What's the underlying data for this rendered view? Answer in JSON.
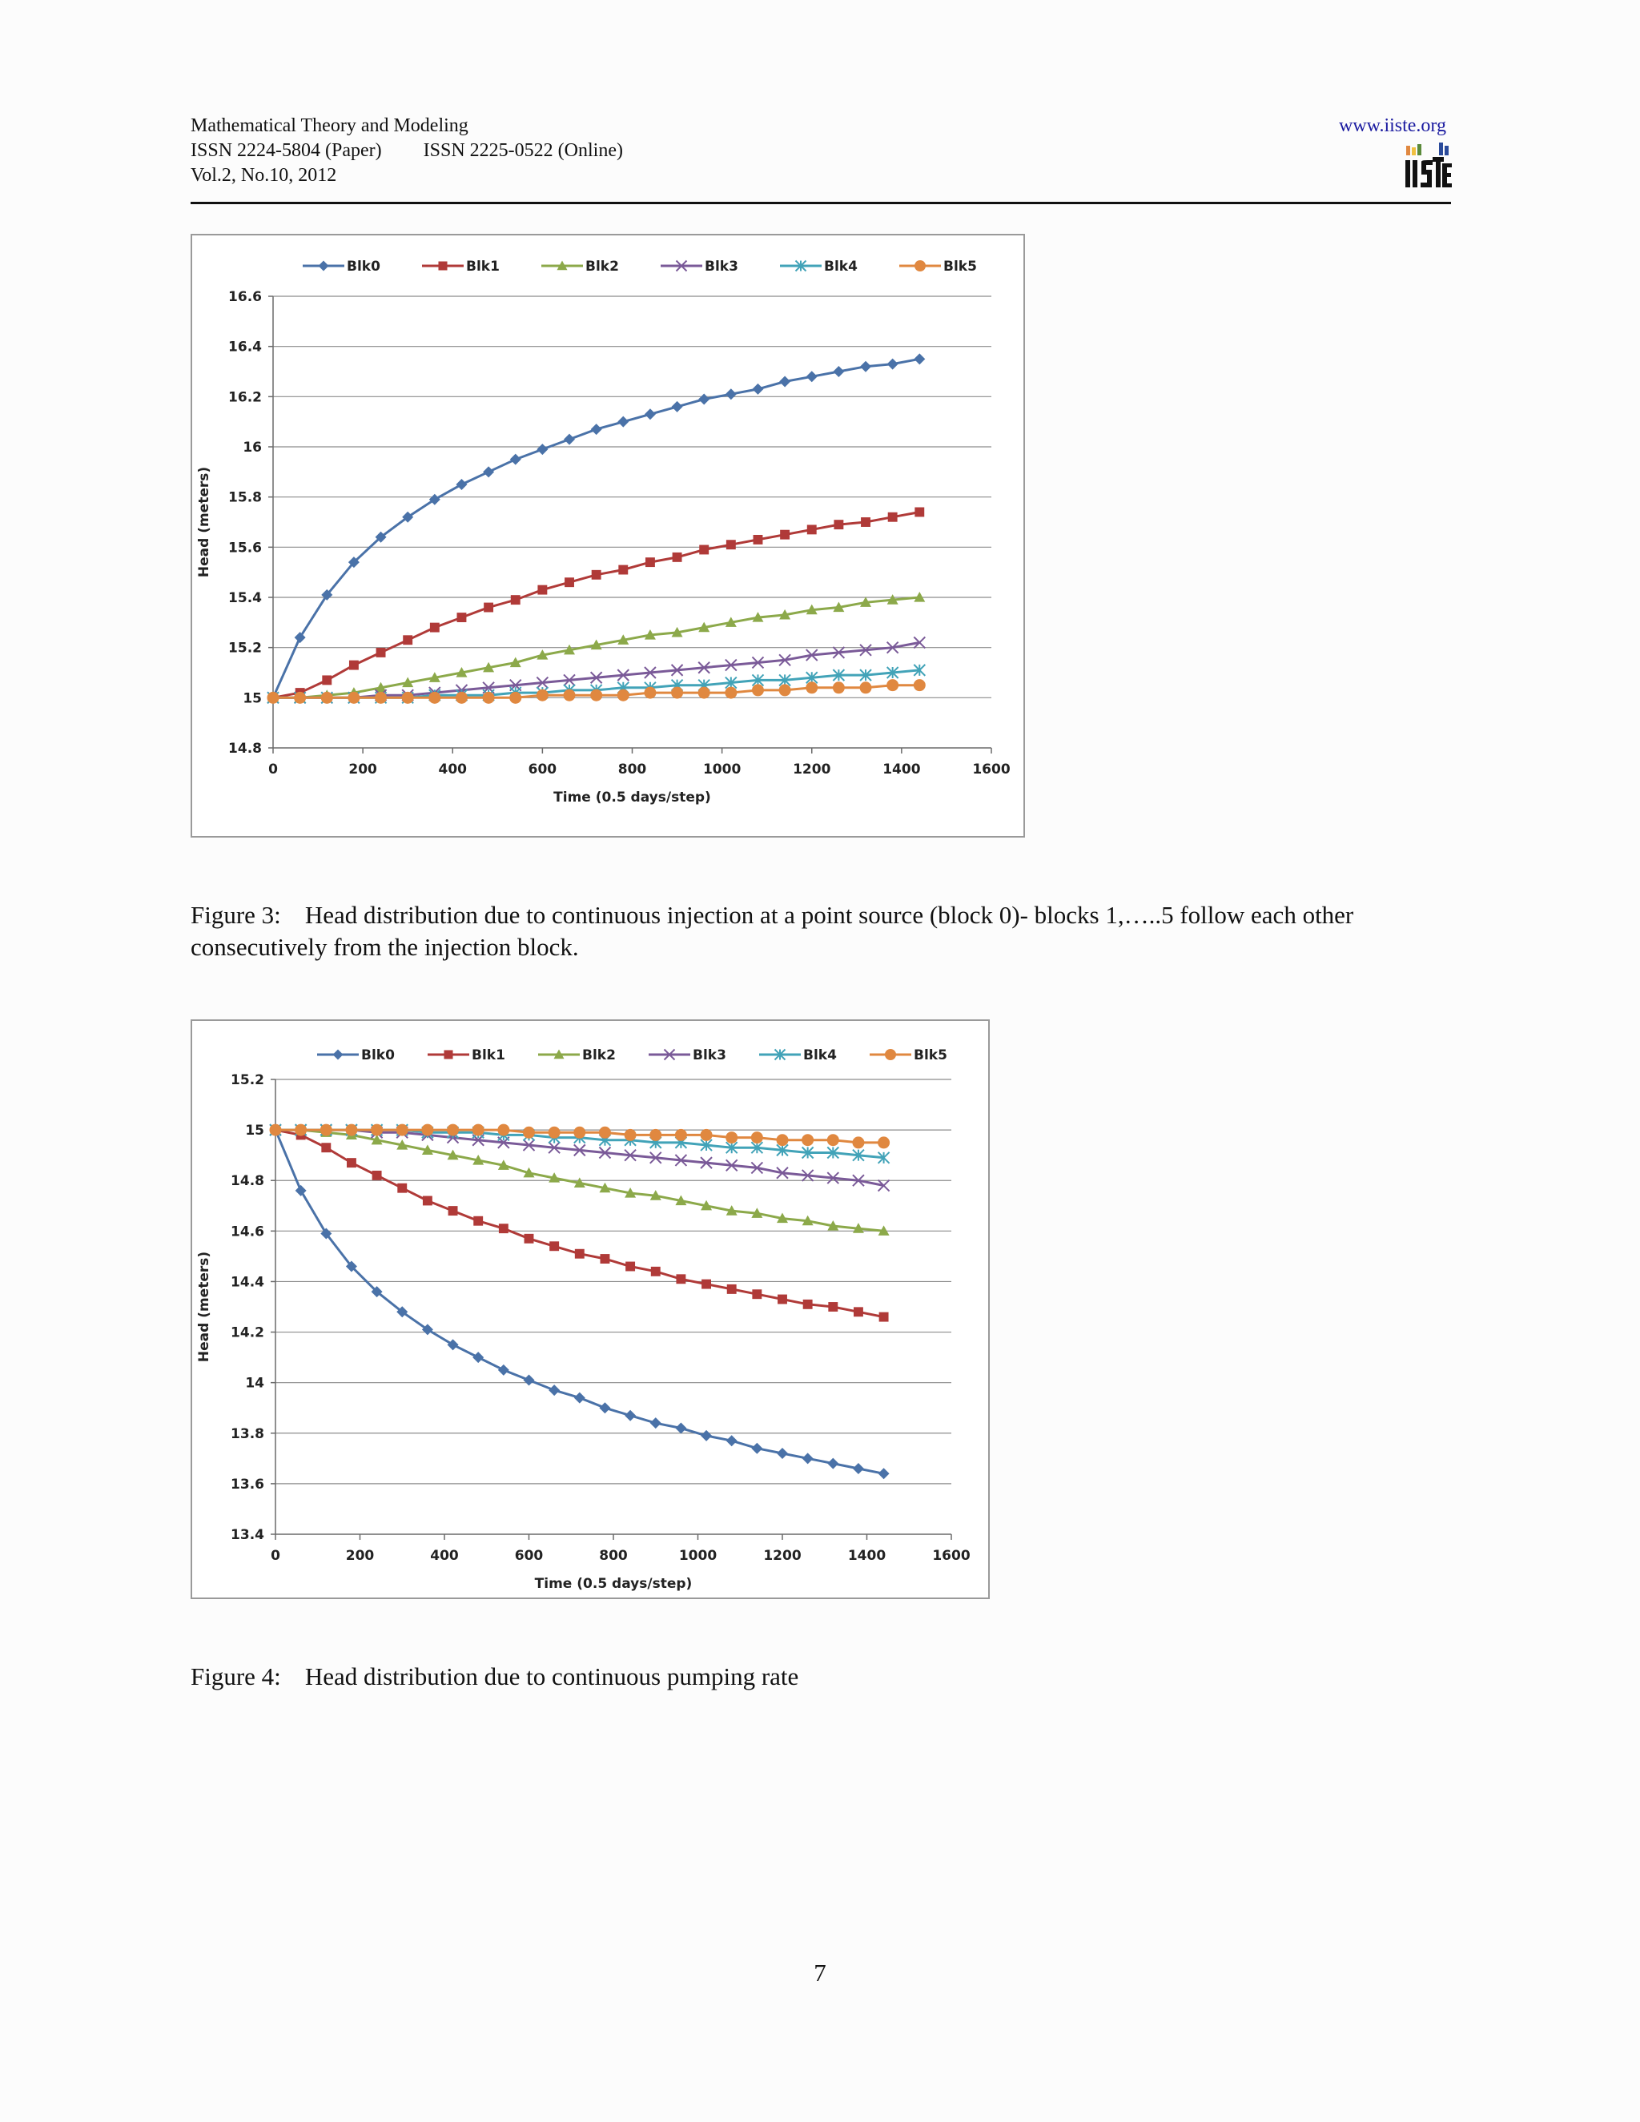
{
  "header": {
    "journal": "Mathematical Theory and Modeling",
    "issn_paper": "ISSN 2224-5804 (Paper)",
    "issn_online": "ISSN 2225-0522 (Online)",
    "volume": "Vol.2, No.10, 2012",
    "url": "www.iiste.org",
    "logo_text": "IISTE"
  },
  "colors": {
    "Blk0": "#4a72a8",
    "Blk1": "#b03a38",
    "Blk2": "#8ca94a",
    "Blk3": "#7a5a98",
    "Blk4": "#42a3b8",
    "Blk5": "#e08840",
    "grid": "#8c8c8c",
    "axis": "#6a6a6a"
  },
  "figures": [
    {
      "label": "Figure 3:",
      "caption": "Head distribution due to continuous injection at a point source (block 0)- blocks 1,…..5 follow each other consecutively from the injection block."
    },
    {
      "label": "Figure 4:",
      "caption": "Head distribution due to continuous pumping rate"
    }
  ],
  "page_number": "7",
  "chart_data": [
    {
      "type": "line",
      "xlabel": "Time (0.5 days/step)",
      "ylabel": "Head (meters)",
      "xlim": [
        0,
        1600
      ],
      "ylim": [
        14.8,
        16.6
      ],
      "xticks": [
        "0",
        "200",
        "400",
        "600",
        "800",
        "1000",
        "1200",
        "1400",
        "1600"
      ],
      "yticks": [
        "14.8",
        "15",
        "15.2",
        "15.4",
        "15.6",
        "15.8",
        "16",
        "16.2",
        "16.4",
        "16.6"
      ],
      "grid": true,
      "legend": "top",
      "x": [
        0,
        60,
        120,
        180,
        240,
        300,
        360,
        420,
        480,
        540,
        600,
        660,
        720,
        780,
        840,
        900,
        960,
        1020,
        1080,
        1140,
        1200,
        1260,
        1320,
        1380,
        1440
      ],
      "series": [
        {
          "name": "Blk0",
          "marker": "diamond",
          "values": [
            15.0,
            15.24,
            15.41,
            15.54,
            15.64,
            15.72,
            15.79,
            15.85,
            15.9,
            15.95,
            15.99,
            16.03,
            16.07,
            16.1,
            16.13,
            16.16,
            16.19,
            16.21,
            16.23,
            16.26,
            16.28,
            16.3,
            16.32,
            16.33,
            16.35
          ]
        },
        {
          "name": "Blk1",
          "marker": "square",
          "values": [
            15.0,
            15.02,
            15.07,
            15.13,
            15.18,
            15.23,
            15.28,
            15.32,
            15.36,
            15.39,
            15.43,
            15.46,
            15.49,
            15.51,
            15.54,
            15.56,
            15.59,
            15.61,
            15.63,
            15.65,
            15.67,
            15.69,
            15.7,
            15.72,
            15.74
          ]
        },
        {
          "name": "Blk2",
          "marker": "triangle",
          "values": [
            15.0,
            15.0,
            15.01,
            15.02,
            15.04,
            15.06,
            15.08,
            15.1,
            15.12,
            15.14,
            15.17,
            15.19,
            15.21,
            15.23,
            15.25,
            15.26,
            15.28,
            15.3,
            15.32,
            15.33,
            15.35,
            15.36,
            15.38,
            15.39,
            15.4
          ]
        },
        {
          "name": "Blk3",
          "marker": "x",
          "values": [
            15.0,
            15.0,
            15.0,
            15.0,
            15.01,
            15.01,
            15.02,
            15.03,
            15.04,
            15.05,
            15.06,
            15.07,
            15.08,
            15.09,
            15.1,
            15.11,
            15.12,
            15.13,
            15.14,
            15.15,
            15.17,
            15.18,
            15.19,
            15.2,
            15.22
          ]
        },
        {
          "name": "Blk4",
          "marker": "star",
          "values": [
            15.0,
            15.0,
            15.0,
            15.0,
            15.0,
            15.0,
            15.01,
            15.01,
            15.01,
            15.02,
            15.02,
            15.03,
            15.03,
            15.04,
            15.04,
            15.05,
            15.05,
            15.06,
            15.07,
            15.07,
            15.08,
            15.09,
            15.09,
            15.1,
            15.11
          ]
        },
        {
          "name": "Blk5",
          "marker": "circle",
          "values": [
            15.0,
            15.0,
            15.0,
            15.0,
            15.0,
            15.0,
            15.0,
            15.0,
            15.0,
            15.0,
            15.01,
            15.01,
            15.01,
            15.01,
            15.02,
            15.02,
            15.02,
            15.02,
            15.03,
            15.03,
            15.04,
            15.04,
            15.04,
            15.05,
            15.05
          ]
        }
      ]
    },
    {
      "type": "line",
      "xlabel": "Time (0.5 days/step)",
      "ylabel": "Head (meters)",
      "xlim": [
        0,
        1600
      ],
      "ylim": [
        13.4,
        15.2
      ],
      "xticks": [
        "0",
        "200",
        "400",
        "600",
        "800",
        "1000",
        "1200",
        "1400",
        "1600"
      ],
      "yticks": [
        "13.4",
        "13.6",
        "13.8",
        "14",
        "14.2",
        "14.4",
        "14.6",
        "14.8",
        "15",
        "15.2"
      ],
      "grid": true,
      "legend": "top",
      "x": [
        0,
        60,
        120,
        180,
        240,
        300,
        360,
        420,
        480,
        540,
        600,
        660,
        720,
        780,
        840,
        900,
        960,
        1020,
        1080,
        1140,
        1200,
        1260,
        1320,
        1380,
        1440
      ],
      "series": [
        {
          "name": "Blk0",
          "marker": "diamond",
          "values": [
            15.0,
            14.76,
            14.59,
            14.46,
            14.36,
            14.28,
            14.21,
            14.15,
            14.1,
            14.05,
            14.01,
            13.97,
            13.94,
            13.9,
            13.87,
            13.84,
            13.82,
            13.79,
            13.77,
            13.74,
            13.72,
            13.7,
            13.68,
            13.66,
            13.64
          ]
        },
        {
          "name": "Blk1",
          "marker": "square",
          "values": [
            15.0,
            14.98,
            14.93,
            14.87,
            14.82,
            14.77,
            14.72,
            14.68,
            14.64,
            14.61,
            14.57,
            14.54,
            14.51,
            14.49,
            14.46,
            14.44,
            14.41,
            14.39,
            14.37,
            14.35,
            14.33,
            14.31,
            14.3,
            14.28,
            14.26
          ]
        },
        {
          "name": "Blk2",
          "marker": "triangle",
          "values": [
            15.0,
            15.0,
            14.99,
            14.98,
            14.96,
            14.94,
            14.92,
            14.9,
            14.88,
            14.86,
            14.83,
            14.81,
            14.79,
            14.77,
            14.75,
            14.74,
            14.72,
            14.7,
            14.68,
            14.67,
            14.65,
            14.64,
            14.62,
            14.61,
            14.6
          ]
        },
        {
          "name": "Blk3",
          "marker": "x",
          "values": [
            15.0,
            15.0,
            15.0,
            15.0,
            14.99,
            14.99,
            14.98,
            14.97,
            14.96,
            14.95,
            14.94,
            14.93,
            14.92,
            14.91,
            14.9,
            14.89,
            14.88,
            14.87,
            14.86,
            14.85,
            14.83,
            14.82,
            14.81,
            14.8,
            14.78
          ]
        },
        {
          "name": "Blk4",
          "marker": "star",
          "values": [
            15.0,
            15.0,
            15.0,
            15.0,
            15.0,
            15.0,
            14.99,
            14.99,
            14.99,
            14.98,
            14.98,
            14.97,
            14.97,
            14.96,
            14.96,
            14.95,
            14.95,
            14.94,
            14.93,
            14.93,
            14.92,
            14.91,
            14.91,
            14.9,
            14.89
          ]
        },
        {
          "name": "Blk5",
          "marker": "circle",
          "values": [
            15.0,
            15.0,
            15.0,
            15.0,
            15.0,
            15.0,
            15.0,
            15.0,
            15.0,
            15.0,
            14.99,
            14.99,
            14.99,
            14.99,
            14.98,
            14.98,
            14.98,
            14.98,
            14.97,
            14.97,
            14.96,
            14.96,
            14.96,
            14.95,
            14.95
          ]
        }
      ]
    }
  ]
}
